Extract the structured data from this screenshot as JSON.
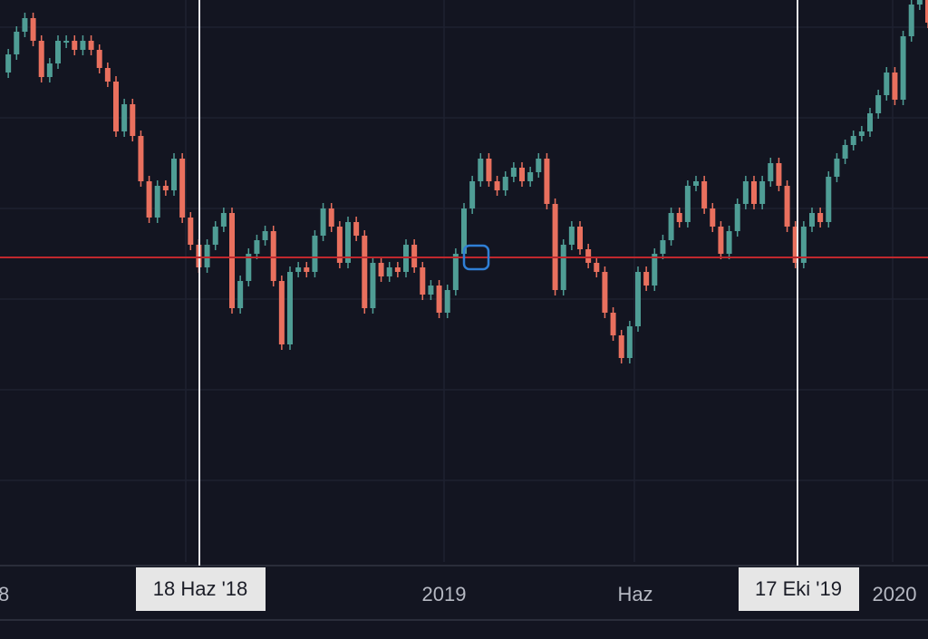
{
  "chart_data": {
    "type": "candle",
    "series": [
      {
        "up_color": "#4f9d95",
        "down_color": "#e9705e",
        "values": [
          540,
          560,
          585,
          600,
          575,
          535,
          550,
          575,
          575,
          565,
          575,
          565,
          545,
          530,
          475,
          505,
          470,
          420,
          380,
          415,
          410,
          445,
          380,
          350,
          325,
          350,
          370,
          385,
          280,
          310,
          340,
          355,
          365,
          310,
          240,
          320,
          325,
          320,
          360,
          390,
          370,
          330,
          375,
          360,
          280,
          330,
          315,
          325,
          320,
          350,
          325,
          295,
          305,
          275,
          300,
          340,
          390,
          420,
          445,
          420,
          410,
          425,
          435,
          420,
          430,
          445,
          395,
          300,
          350,
          370,
          345,
          330,
          320,
          275,
          250,
          225,
          260,
          320,
          305,
          340,
          355,
          385,
          375,
          415,
          420,
          390,
          370,
          340,
          365,
          395,
          420,
          395,
          420,
          440,
          415,
          370,
          330,
          370,
          385,
          375,
          425,
          445,
          460,
          470,
          475,
          495,
          515,
          540,
          510,
          580,
          615,
          620,
          595
        ]
      }
    ],
    "ylim": [
      0,
      620
    ],
    "reference_line": {
      "value": 336,
      "color": "#c0282d"
    },
    "grid": true,
    "x_labels": [
      "8",
      "2019",
      "Haz",
      "2020"
    ],
    "crosshair_labels": [
      "18 Haz '18",
      "17 Eki '19"
    ]
  }
}
